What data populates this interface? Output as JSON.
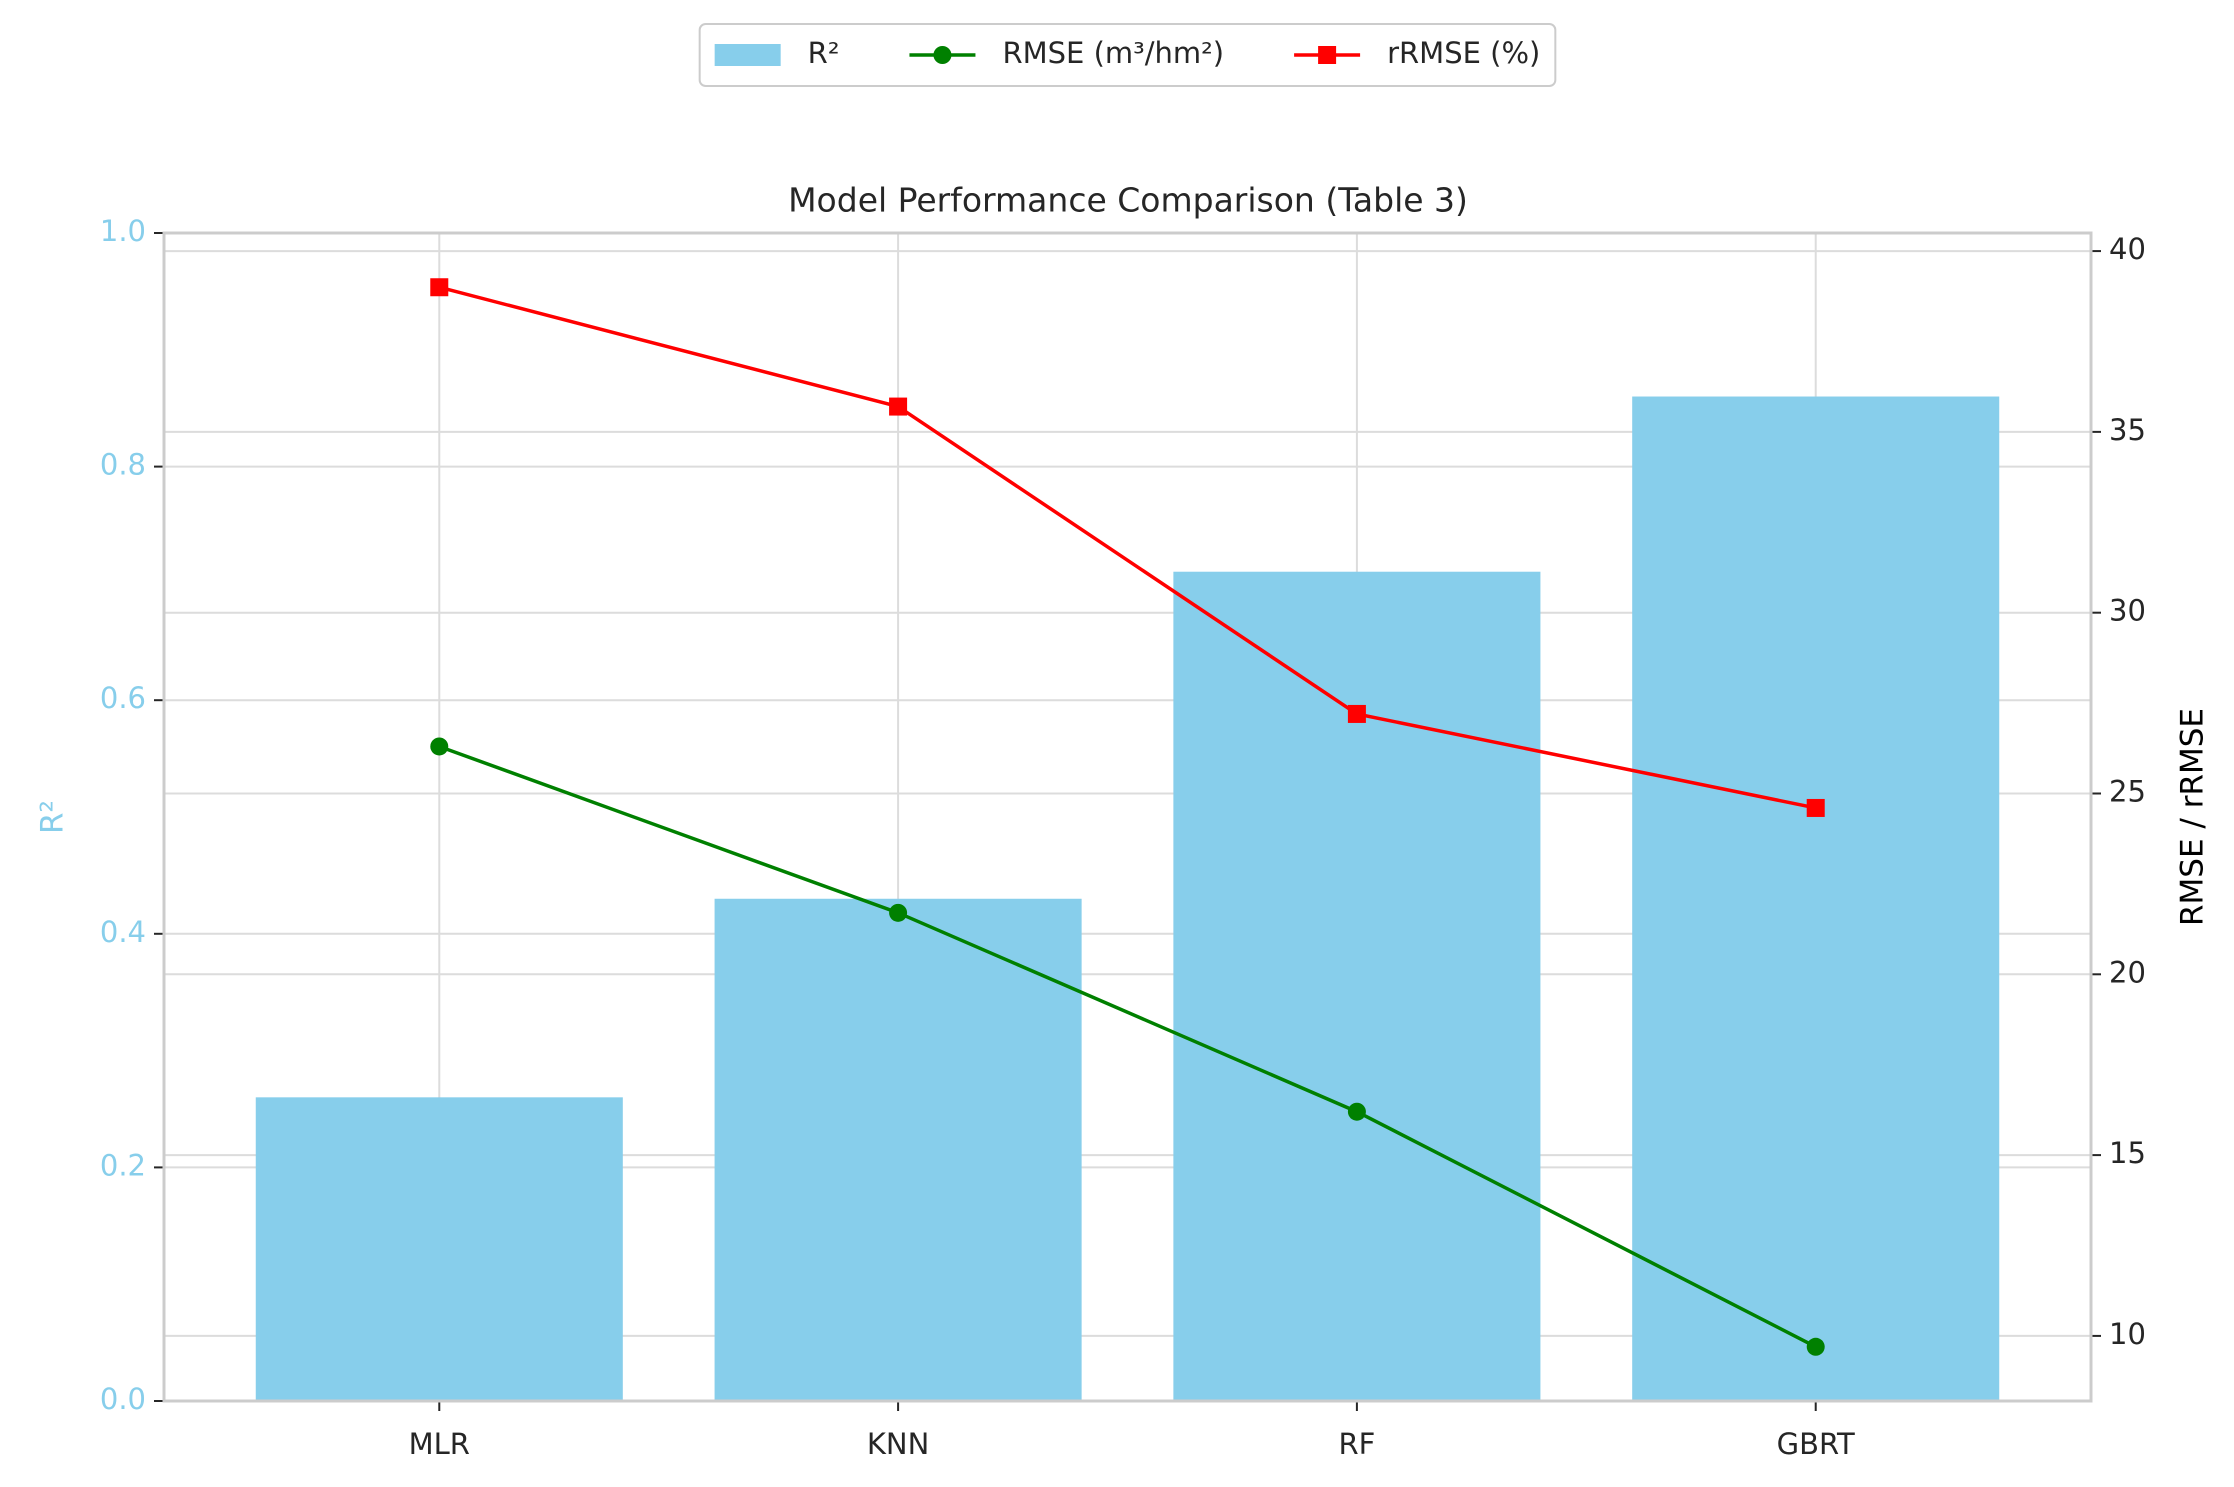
{
  "chart_data": {
    "type": "bar",
    "title": "Model Performance Comparison (Table 3)",
    "categories": [
      "MLR",
      "KNN",
      "RF",
      "GBRT"
    ],
    "series": [
      {
        "name": "R²",
        "type": "bar",
        "color": "#87ceeb",
        "values": [
          0.26,
          0.43,
          0.71,
          0.86
        ]
      },
      {
        "name": "RMSE (m³/hm²)",
        "type": "line",
        "marker": "circle",
        "axis": "y2",
        "color": "#008000",
        "values": [
          26.3,
          21.7,
          16.2,
          9.7
        ]
      },
      {
        "name": "rRMSE (%)",
        "type": "line",
        "marker": "square",
        "axis": "y2",
        "color": "#ff0000",
        "values": [
          39.0,
          35.7,
          27.2,
          24.6
        ]
      }
    ],
    "ylabel": "R²",
    "y2label": "RMSE / rRMSE",
    "ylim": [
      0,
      1
    ],
    "yticks": [
      {
        "value": 0,
        "label": "0.0"
      },
      0.2,
      0.4,
      0.6,
      0.8,
      {
        "value": 1,
        "label": "1.0"
      }
    ],
    "y2lim": [
      8.2,
      40.5
    ],
    "y2ticks": [
      10,
      15,
      20,
      25,
      30,
      35,
      40
    ],
    "grid": true,
    "legend": "upper center"
  }
}
